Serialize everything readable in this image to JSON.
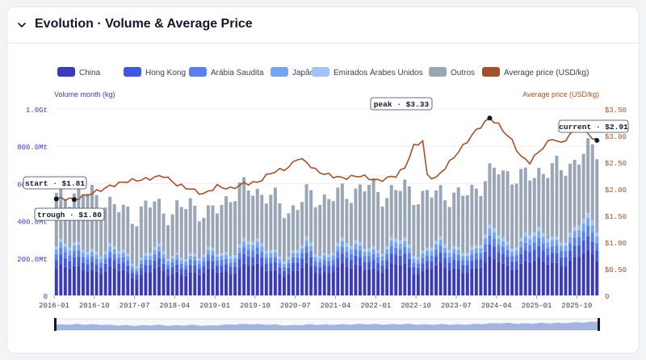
{
  "header": {
    "title": "Evolution · Volume & Average Price"
  },
  "legend": [
    {
      "name": "China",
      "color": "#3a3bb5"
    },
    {
      "name": "Hong Kong",
      "color": "#4458de"
    },
    {
      "name": "Arábia Saudita",
      "color": "#5a80ee"
    },
    {
      "name": "Japão",
      "color": "#75a4f5"
    },
    {
      "name": "Emirados Árabes Unidos",
      "color": "#a3c2f7"
    },
    {
      "name": "Outros",
      "color": "#9aa5b5"
    },
    {
      "name": "Average price (USD/kg)",
      "color": "#a0522d"
    }
  ],
  "chart_data": {
    "type": "bar",
    "ylabel_left": "Volume month (kg)",
    "ylabel_right": "Average price (USD/kg)",
    "left_ticks": [
      "0",
      "200.0Mt",
      "400.0Mt",
      "600.0Mt",
      "800.0Mt",
      "1.0Gt"
    ],
    "right_ticks": [
      "0",
      "$0.50",
      "$1.00",
      "$1.50",
      "$2.00",
      "$2.50",
      "$3.00",
      "$3.50"
    ],
    "x_ticks": [
      "2016-01",
      "2016-10",
      "2017-07",
      "2018-04",
      "2019-01",
      "2019-10",
      "2020-07",
      "2021-04",
      "2022-01",
      "2022-10",
      "2023-07",
      "2024-04",
      "2025-01",
      "2025-10"
    ],
    "ylim_left": [
      0,
      1000000000000
    ],
    "ylim_right": [
      0,
      3.5
    ],
    "start_month": "2016-01",
    "n_months": 122,
    "series_shares": [
      0.55,
      0.17,
      0.12,
      0.1,
      0.06
    ],
    "totals_mt": [
      [
        0,
        520
      ],
      [
        5,
        560
      ],
      [
        10,
        520
      ],
      [
        14,
        460
      ],
      [
        18,
        430
      ],
      [
        22,
        500
      ],
      [
        26,
        430
      ],
      [
        30,
        500
      ],
      [
        34,
        420
      ],
      [
        39,
        540
      ],
      [
        43,
        580
      ],
      [
        47,
        540
      ],
      [
        52,
        450
      ],
      [
        56,
        530
      ],
      [
        61,
        520
      ],
      [
        66,
        560
      ],
      [
        70,
        580
      ],
      [
        74,
        540
      ],
      [
        78,
        580
      ],
      [
        82,
        520
      ],
      [
        86,
        560
      ],
      [
        90,
        520
      ],
      [
        95,
        600
      ],
      [
        99,
        680
      ],
      [
        104,
        620
      ],
      [
        108,
        670
      ],
      [
        113,
        680
      ],
      [
        116,
        720
      ],
      [
        120,
        790
      ]
    ],
    "price": [
      [
        0,
        1.81
      ],
      [
        2,
        1.82
      ],
      [
        4,
        1.8
      ],
      [
        6,
        1.86
      ],
      [
        9,
        1.95
      ],
      [
        12,
        2.05
      ],
      [
        16,
        2.15
      ],
      [
        20,
        2.18
      ],
      [
        24,
        2.25
      ],
      [
        27,
        2.08
      ],
      [
        30,
        2.0
      ],
      [
        33,
        1.9
      ],
      [
        36,
        2.05
      ],
      [
        39,
        2.0
      ],
      [
        42,
        2.1
      ],
      [
        45,
        2.12
      ],
      [
        48,
        2.3
      ],
      [
        52,
        2.4
      ],
      [
        54,
        2.58
      ],
      [
        56,
        2.5
      ],
      [
        58,
        2.35
      ],
      [
        60,
        2.28
      ],
      [
        64,
        2.2
      ],
      [
        68,
        2.25
      ],
      [
        72,
        2.15
      ],
      [
        76,
        2.25
      ],
      [
        78,
        2.4
      ],
      [
        80,
        2.8
      ],
      [
        82,
        2.9
      ],
      [
        83,
        2.25
      ],
      [
        85,
        2.2
      ],
      [
        88,
        2.5
      ],
      [
        91,
        2.8
      ],
      [
        94,
        3.1
      ],
      [
        96,
        3.25
      ],
      [
        97,
        3.33
      ],
      [
        99,
        3.2
      ],
      [
        102,
        2.9
      ],
      [
        104,
        2.6
      ],
      [
        106,
        2.5
      ],
      [
        108,
        2.7
      ],
      [
        111,
        2.95
      ],
      [
        113,
        2.85
      ],
      [
        116,
        3.1
      ],
      [
        118,
        3.15
      ],
      [
        120,
        2.95
      ],
      [
        121,
        2.91
      ]
    ],
    "annotations": [
      {
        "label": "start · $1.81",
        "month": 0,
        "value": 1.81
      },
      {
        "label": "trough · $1.80",
        "month": 4,
        "value": 1.8
      },
      {
        "label": "peak · $3.33",
        "month": 97,
        "value": 3.33
      },
      {
        "label": "current · $2.91",
        "month": 121,
        "value": 2.91
      }
    ]
  }
}
